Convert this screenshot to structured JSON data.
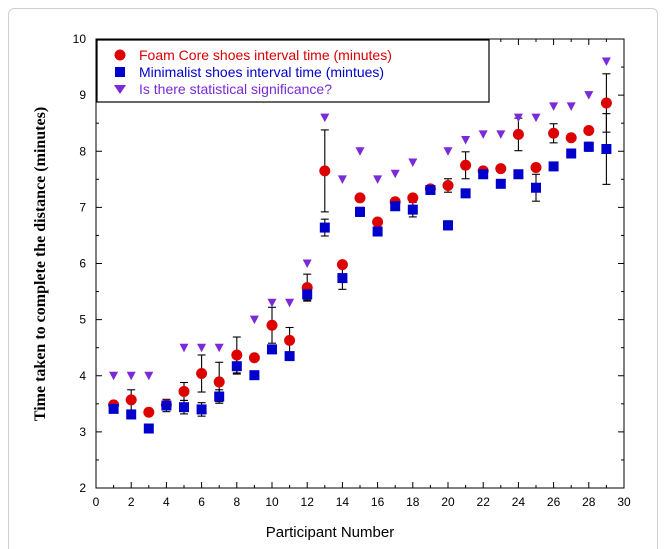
{
  "chart_data": {
    "type": "scatter",
    "title": "",
    "xlabel": "Participant Number",
    "ylabel": "Time taken to complete the distance (minutes)",
    "xlim": [
      0,
      30
    ],
    "ylim": [
      2,
      10
    ],
    "xticks": [
      0,
      2,
      4,
      6,
      8,
      10,
      12,
      14,
      16,
      18,
      20,
      22,
      24,
      26,
      28,
      30
    ],
    "yticks": [
      2,
      3,
      4,
      5,
      6,
      7,
      8,
      9,
      10
    ],
    "grid": false,
    "legend_position": "top-left",
    "series": [
      {
        "name": "Foam Core shoes interval time (minutes)",
        "color": "#dd0000",
        "marker": "circle",
        "x": [
          1,
          2,
          3,
          4,
          5,
          6,
          7,
          8,
          9,
          10,
          11,
          12,
          13,
          14,
          15,
          16,
          17,
          18,
          19,
          20,
          21,
          22,
          23,
          24,
          25,
          26,
          27,
          28,
          29
        ],
        "y": [
          3.48,
          3.57,
          3.35,
          3.48,
          3.72,
          4.04,
          3.89,
          4.37,
          4.32,
          4.9,
          4.63,
          5.57,
          7.65,
          5.98,
          7.17,
          6.74,
          7.1,
          7.17,
          7.33,
          7.39,
          7.75,
          7.65,
          7.69,
          8.3,
          7.71,
          8.32,
          8.24,
          8.37,
          8.86
        ],
        "error": [
          0,
          0.18,
          0,
          0,
          0.16,
          0.33,
          0.35,
          0.32,
          0,
          0.32,
          0.23,
          0.24,
          0.73,
          0,
          0,
          0,
          0,
          0,
          0,
          0.12,
          0.24,
          0,
          0,
          0.29,
          0,
          0.17,
          0,
          0,
          0.52
        ]
      },
      {
        "name": "Minimalist shoes interval time (mintues)",
        "color": "#0000cc",
        "marker": "square",
        "x": [
          1,
          2,
          3,
          4,
          5,
          6,
          7,
          8,
          9,
          10,
          11,
          12,
          13,
          14,
          15,
          16,
          17,
          18,
          19,
          20,
          21,
          22,
          23,
          24,
          25,
          26,
          27,
          28,
          29
        ],
        "y": [
          3.41,
          3.31,
          3.06,
          3.47,
          3.44,
          3.4,
          3.63,
          4.17,
          4.01,
          4.47,
          4.35,
          5.45,
          6.64,
          5.74,
          6.92,
          6.57,
          7.02,
          6.96,
          7.31,
          6.68,
          7.25,
          7.59,
          7.42,
          7.59,
          7.35,
          7.73,
          7.96,
          8.08,
          8.04
        ],
        "error": [
          0,
          0,
          0,
          0.11,
          0.12,
          0.12,
          0.12,
          0.14,
          0,
          0,
          0,
          0.1,
          0.15,
          0.2,
          0.08,
          0.06,
          0,
          0.13,
          0.07,
          0.08,
          0,
          0,
          0,
          0,
          0.24,
          0,
          0,
          0.08,
          0.63
        ]
      },
      {
        "name": "Is there statistical significance?",
        "color": "#7a2ad8",
        "marker": "triangle-down",
        "x": [
          1,
          2,
          3,
          5,
          6,
          7,
          9,
          10,
          11,
          12,
          13,
          14,
          15,
          16,
          17,
          18,
          20,
          21,
          22,
          23,
          24,
          25,
          26,
          27,
          28,
          29
        ],
        "y": [
          4,
          4,
          4,
          4.5,
          4.5,
          4.5,
          5,
          5.3,
          5.3,
          6,
          8.6,
          7.5,
          8,
          7.5,
          7.6,
          7.8,
          8,
          8.2,
          8.3,
          8.3,
          8.6,
          8.6,
          8.8,
          8.8,
          9,
          9.6
        ]
      }
    ]
  }
}
